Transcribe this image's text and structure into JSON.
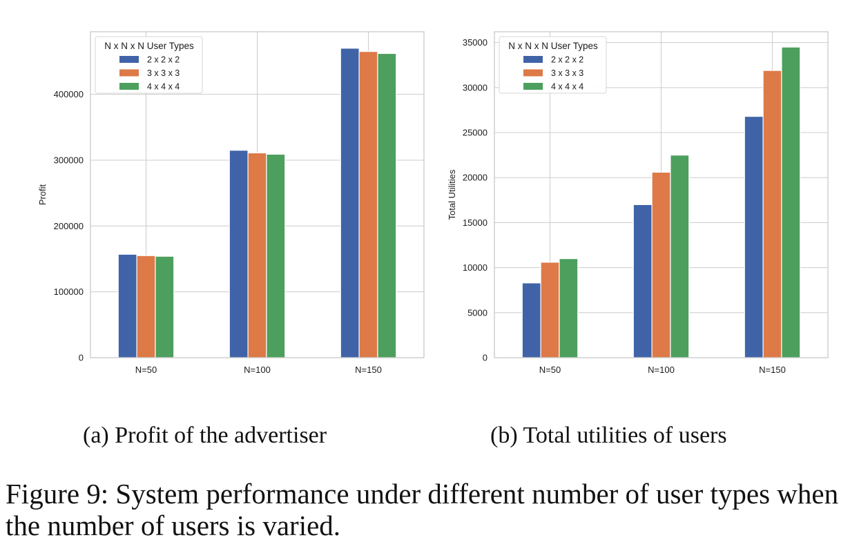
{
  "chart_data": [
    {
      "type": "bar",
      "categories": [
        "N=50",
        "N=100",
        "N=150"
      ],
      "series": [
        {
          "name": "2 x 2 x 2",
          "values": [
            157000,
            315000,
            470000
          ]
        },
        {
          "name": "3 x 3 x 3",
          "values": [
            155000,
            311000,
            465000
          ]
        },
        {
          "name": "4 x 4 x 4",
          "values": [
            154000,
            309000,
            462000
          ]
        }
      ],
      "ylabel": "Profit",
      "xlabel": "",
      "ylim": [
        0,
        495000
      ],
      "yticks": [
        0,
        100000,
        200000,
        300000,
        400000
      ],
      "grid": true,
      "legend": {
        "title": "N x N x N User Types",
        "placement": "top-left"
      }
    },
    {
      "type": "bar",
      "categories": [
        "N=50",
        "N=100",
        "N=150"
      ],
      "series": [
        {
          "name": "2 x 2 x 2",
          "values": [
            8300,
            17000,
            26800
          ]
        },
        {
          "name": "3 x 3 x 3",
          "values": [
            10600,
            20600,
            31900
          ]
        },
        {
          "name": "4 x 4 x 4",
          "values": [
            11000,
            22500,
            34500
          ]
        }
      ],
      "ylabel": "Total Utilities",
      "xlabel": "",
      "ylim": [
        0,
        36200
      ],
      "yticks": [
        0,
        5000,
        10000,
        15000,
        20000,
        25000,
        30000,
        35000
      ],
      "grid": true,
      "legend": {
        "title": "N x N x N User Types",
        "placement": "top-left"
      }
    }
  ],
  "colors": [
    "#4063a8",
    "#dd7a47",
    "#4d9f5d"
  ],
  "captions": {
    "a": "(a) Profit of the advertiser",
    "b": "(b) Total utilities of users",
    "figure": "Figure 9: System performance under different number of user types when the number of users is varied."
  }
}
